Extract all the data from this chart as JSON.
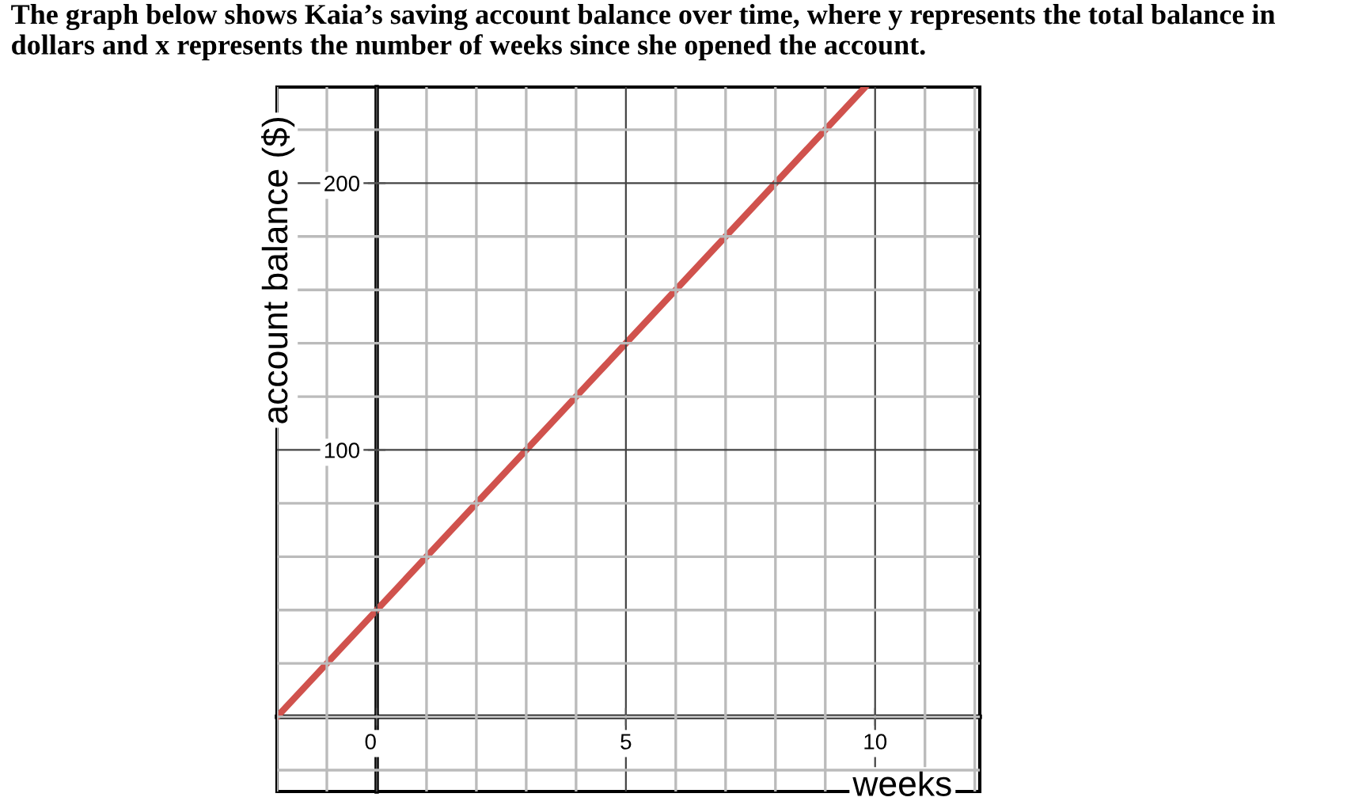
{
  "chart_data": {
    "type": "line",
    "title": "The graph below shows Kaia’s saving account balance over time, where y represents the total balance in dollars and x represents the number of weeks since she opened the account.",
    "xlabel": "weeks",
    "ylabel": "account balance ($)",
    "x": [
      -2,
      0,
      5,
      9.8
    ],
    "series": [
      {
        "color": "#d0524d",
        "values": [
          0,
          40,
          140,
          236
        ]
      }
    ],
    "xlim": [
      -2,
      12.1
    ],
    "ylim": [
      -28,
      236
    ],
    "xticks": [
      0,
      5,
      10
    ],
    "yticks": [
      100,
      200
    ],
    "grid": true,
    "marker": "none",
    "line_style": "solid"
  }
}
